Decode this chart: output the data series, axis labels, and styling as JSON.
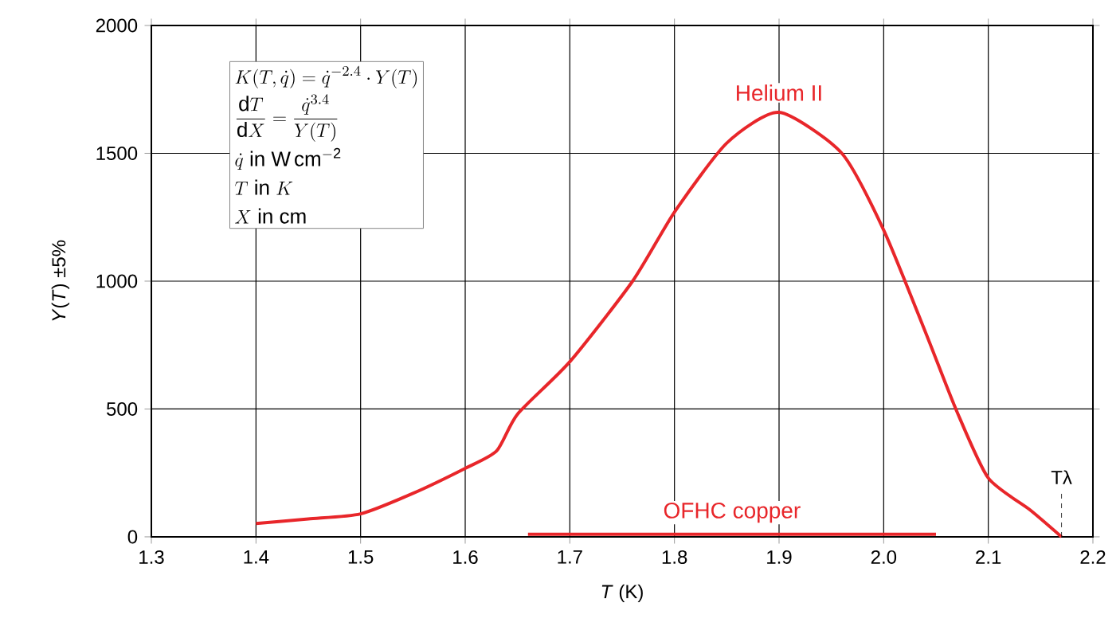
{
  "chart_data": {
    "type": "line",
    "xlabel": "*T* (K)",
    "ylabel": "*Y*(*T*) ±5%",
    "xlim": [
      1.3,
      2.2
    ],
    "xticks": [
      1.3,
      1.4,
      1.5,
      1.6,
      1.7,
      1.8,
      1.9,
      {
        "value": 2.0,
        "label": "2.0"
      },
      2.1,
      2.2
    ],
    "ylim": [
      0,
      2000
    ],
    "yticks": [
      0,
      500,
      1000,
      1500,
      2000
    ],
    "grid": true,
    "series": [
      {
        "name": "Helium II",
        "color": "#e8262a",
        "x": [
          1.4,
          1.45,
          1.5,
          1.55,
          1.6,
          1.63,
          1.65,
          1.7,
          1.76,
          1.8,
          1.85,
          1.9,
          1.96,
          2.0,
          2.04,
          2.07,
          2.1,
          2.14,
          2.17
        ],
        "values": [
          52,
          70,
          90,
          170,
          268,
          336,
          480,
          685,
          1000,
          1270,
          1540,
          1660,
          1500,
          1200,
          800,
          490,
          230,
          105,
          0
        ]
      },
      {
        "name": "OFHC copper",
        "color": "#e8262a",
        "x": [
          1.66,
          2.05
        ],
        "values": [
          10,
          10
        ]
      }
    ],
    "ref_lines": [
      {
        "axis": "x",
        "value": 2.17,
        "label": "Tλ",
        "line_style": "dashed",
        "color": "#000000"
      }
    ],
    "annotations": [
      "K(T,\\dot{q}) = \\dot{q}^{-2.4}\\cdot Y(T)",
      "\\frac{\\mathrm{d}T}{\\mathrm{d}X} = \\frac{\\dot{q}^{3.4}}{Y(T)}",
      "\\dot{q}\\ \\mathrm{in\\ W\\,cm^{-2}}",
      "T\\ \\mathrm{in}\\ K",
      "X\\ \\mathrm{in\\ cm}"
    ]
  }
}
